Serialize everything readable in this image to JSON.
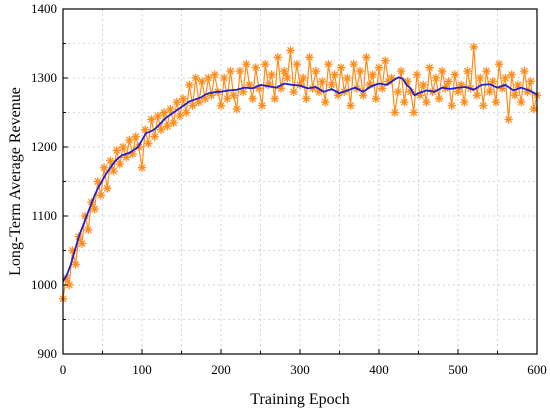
{
  "chart_data": {
    "type": "line",
    "xlabel": "Training Epoch",
    "ylabel": "Long-Term Average Revenue",
    "xlim": [
      0,
      600
    ],
    "ylim": [
      900,
      1400
    ],
    "xticks": [
      0,
      100,
      200,
      300,
      400,
      500,
      600
    ],
    "yticks": [
      900,
      1000,
      1100,
      1200,
      1300,
      1400
    ],
    "grid": true,
    "legend": "none",
    "colors": {
      "raw": "#ff8c1a",
      "smoothed": "#1f1fcc"
    },
    "series": [
      {
        "marker": "asterisk",
        "style": "markers-with-line",
        "x": [
          0,
          4,
          8,
          12,
          16,
          20,
          24,
          28,
          32,
          36,
          40,
          44,
          48,
          52,
          56,
          60,
          64,
          68,
          72,
          76,
          80,
          84,
          88,
          92,
          96,
          100,
          104,
          108,
          112,
          116,
          120,
          124,
          128,
          132,
          136,
          140,
          144,
          148,
          152,
          156,
          160,
          164,
          168,
          172,
          176,
          180,
          184,
          188,
          192,
          196,
          200,
          204,
          208,
          212,
          216,
          220,
          224,
          228,
          232,
          236,
          240,
          244,
          248,
          252,
          256,
          260,
          264,
          268,
          272,
          276,
          280,
          284,
          288,
          292,
          296,
          300,
          304,
          308,
          312,
          316,
          320,
          324,
          328,
          332,
          336,
          340,
          344,
          348,
          352,
          356,
          360,
          364,
          368,
          372,
          376,
          380,
          384,
          388,
          392,
          396,
          400,
          404,
          408,
          412,
          416,
          420,
          424,
          428,
          432,
          436,
          440,
          444,
          448,
          452,
          456,
          460,
          464,
          468,
          472,
          476,
          480,
          484,
          488,
          492,
          496,
          500,
          504,
          508,
          512,
          516,
          520,
          524,
          528,
          532,
          536,
          540,
          544,
          548,
          552,
          556,
          560,
          564,
          568,
          572,
          576,
          580,
          584,
          588,
          592,
          596,
          600
        ],
        "y": [
          980,
          1010,
          1000,
          1050,
          1030,
          1070,
          1060,
          1100,
          1080,
          1120,
          1110,
          1150,
          1130,
          1170,
          1140,
          1180,
          1165,
          1195,
          1175,
          1200,
          1185,
          1210,
          1190,
          1215,
          1200,
          1170,
          1225,
          1205,
          1240,
          1215,
          1245,
          1225,
          1250,
          1230,
          1255,
          1235,
          1265,
          1245,
          1270,
          1250,
          1290,
          1260,
          1300,
          1265,
          1295,
          1270,
          1300,
          1275,
          1305,
          1280,
          1260,
          1300,
          1270,
          1310,
          1275,
          1255,
          1310,
          1280,
          1320,
          1290,
          1270,
          1315,
          1285,
          1260,
          1320,
          1290,
          1305,
          1270,
          1330,
          1285,
          1310,
          1300,
          1340,
          1280,
          1320,
          1290,
          1300,
          1270,
          1330,
          1285,
          1310,
          1280,
          1295,
          1265,
          1320,
          1290,
          1305,
          1275,
          1315,
          1280,
          1300,
          1260,
          1320,
          1285,
          1310,
          1275,
          1330,
          1290,
          1305,
          1270,
          1315,
          1285,
          1325,
          1295,
          1300,
          1250,
          1280,
          1310,
          1265,
          1295,
          1280,
          1250,
          1305,
          1275,
          1290,
          1265,
          1315,
          1280,
          1300,
          1270,
          1310,
          1285,
          1295,
          1260,
          1305,
          1280,
          1290,
          1265,
          1310,
          1285,
          1345,
          1275,
          1300,
          1260,
          1310,
          1280,
          1295,
          1265,
          1320,
          1285,
          1300,
          1240,
          1305,
          1275,
          1290,
          1265,
          1310,
          1280,
          1295,
          1255,
          1275
        ]
      },
      {
        "marker": "none",
        "style": "line",
        "x": [
          0,
          5,
          10,
          15,
          20,
          25,
          30,
          35,
          40,
          45,
          50,
          55,
          60,
          65,
          70,
          75,
          80,
          85,
          90,
          95,
          100,
          105,
          110,
          115,
          120,
          125,
          130,
          135,
          140,
          145,
          150,
          155,
          160,
          165,
          170,
          175,
          180,
          185,
          190,
          195,
          200,
          210,
          220,
          230,
          240,
          250,
          260,
          270,
          280,
          290,
          300,
          310,
          320,
          330,
          340,
          350,
          360,
          370,
          380,
          390,
          400,
          410,
          420,
          425,
          430,
          435,
          440,
          445,
          450,
          460,
          470,
          480,
          490,
          500,
          510,
          520,
          530,
          540,
          550,
          560,
          570,
          580,
          590,
          600
        ],
        "y": [
          1005,
          1015,
          1030,
          1050,
          1070,
          1085,
          1100,
          1115,
          1130,
          1142,
          1152,
          1162,
          1170,
          1178,
          1184,
          1188,
          1190,
          1192,
          1196,
          1200,
          1210,
          1220,
          1222,
          1225,
          1230,
          1236,
          1242,
          1246,
          1250,
          1254,
          1258,
          1262,
          1266,
          1268,
          1270,
          1272,
          1276,
          1278,
          1279,
          1280,
          1280,
          1282,
          1283,
          1286,
          1285,
          1290,
          1288,
          1286,
          1292,
          1290,
          1289,
          1285,
          1287,
          1280,
          1284,
          1278,
          1282,
          1286,
          1280,
          1288,
          1292,
          1290,
          1298,
          1301,
          1299,
          1290,
          1285,
          1275,
          1278,
          1282,
          1280,
          1286,
          1284,
          1286,
          1287,
          1283,
          1290,
          1291,
          1286,
          1290,
          1282,
          1286,
          1282,
          1276
        ]
      }
    ]
  }
}
